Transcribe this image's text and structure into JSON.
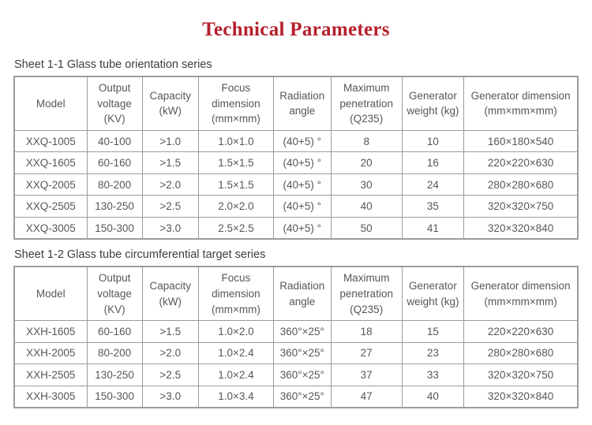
{
  "page": {
    "title": "Technical Parameters"
  },
  "colors": {
    "title_red": "#b5202c",
    "table_border": "#9c9c9c",
    "body_text": "#56575b",
    "caption_text": "#3d3d3f",
    "background": "#ffffff"
  },
  "tables": [
    {
      "caption": "Sheet 1-1 Glass tube orientation series",
      "headers": [
        "Model",
        "Output voltage (KV)",
        "Capacity (kW)",
        "Focus dimension (mm×mm)",
        "Radiation angle",
        "Maximum penetration (Q235)",
        "Generator weight (kg)",
        "Generator dimension (mm×mm×mm)"
      ],
      "rows": [
        [
          "XXQ-1005",
          "40-100",
          ">1.0",
          "1.0×1.0",
          "(40+5) °",
          "8",
          "10",
          "160×180×540"
        ],
        [
          "XXQ-1605",
          "60-160",
          ">1.5",
          "1.5×1.5",
          "(40+5) °",
          "20",
          "16",
          "220×220×630"
        ],
        [
          "XXQ-2005",
          "80-200",
          ">2.0",
          "1.5×1.5",
          "(40+5) °",
          "30",
          "24",
          "280×280×680"
        ],
        [
          "XXQ-2505",
          "130-250",
          ">2.5",
          "2.0×2.0",
          "(40+5) °",
          "40",
          "35",
          "320×320×750"
        ],
        [
          "XXQ-3005",
          "150-300",
          ">3.0",
          "2.5×2.5",
          "(40+5) °",
          "50",
          "41",
          "320×320×840"
        ]
      ]
    },
    {
      "caption": "Sheet 1-2 Glass tube circumferential target series",
      "headers": [
        "Model",
        "Output voltage (KV)",
        "Capacity (kW)",
        "Focus dimension (mm×mm)",
        "Radiation angle",
        "Maximum penetration (Q235)",
        "Generator weight (kg)",
        "Generator dimension (mm×mm×mm)"
      ],
      "rows": [
        [
          "XXH-1605",
          "60-160",
          ">1.5",
          "1.0×2.0",
          "360°×25°",
          "18",
          "15",
          "220×220×630"
        ],
        [
          "XXH-2005",
          "80-200",
          ">2.0",
          "1.0×2.4",
          "360°×25°",
          "27",
          "23",
          "280×280×680"
        ],
        [
          "XXH-2505",
          "130-250",
          ">2.5",
          "1.0×2.4",
          "360°×25°",
          "37",
          "33",
          "320×320×750"
        ],
        [
          "XXH-3005",
          "150-300",
          ">3.0",
          "1.0×3.4",
          "360°×25°",
          "47",
          "40",
          "320×320×840"
        ]
      ]
    }
  ]
}
